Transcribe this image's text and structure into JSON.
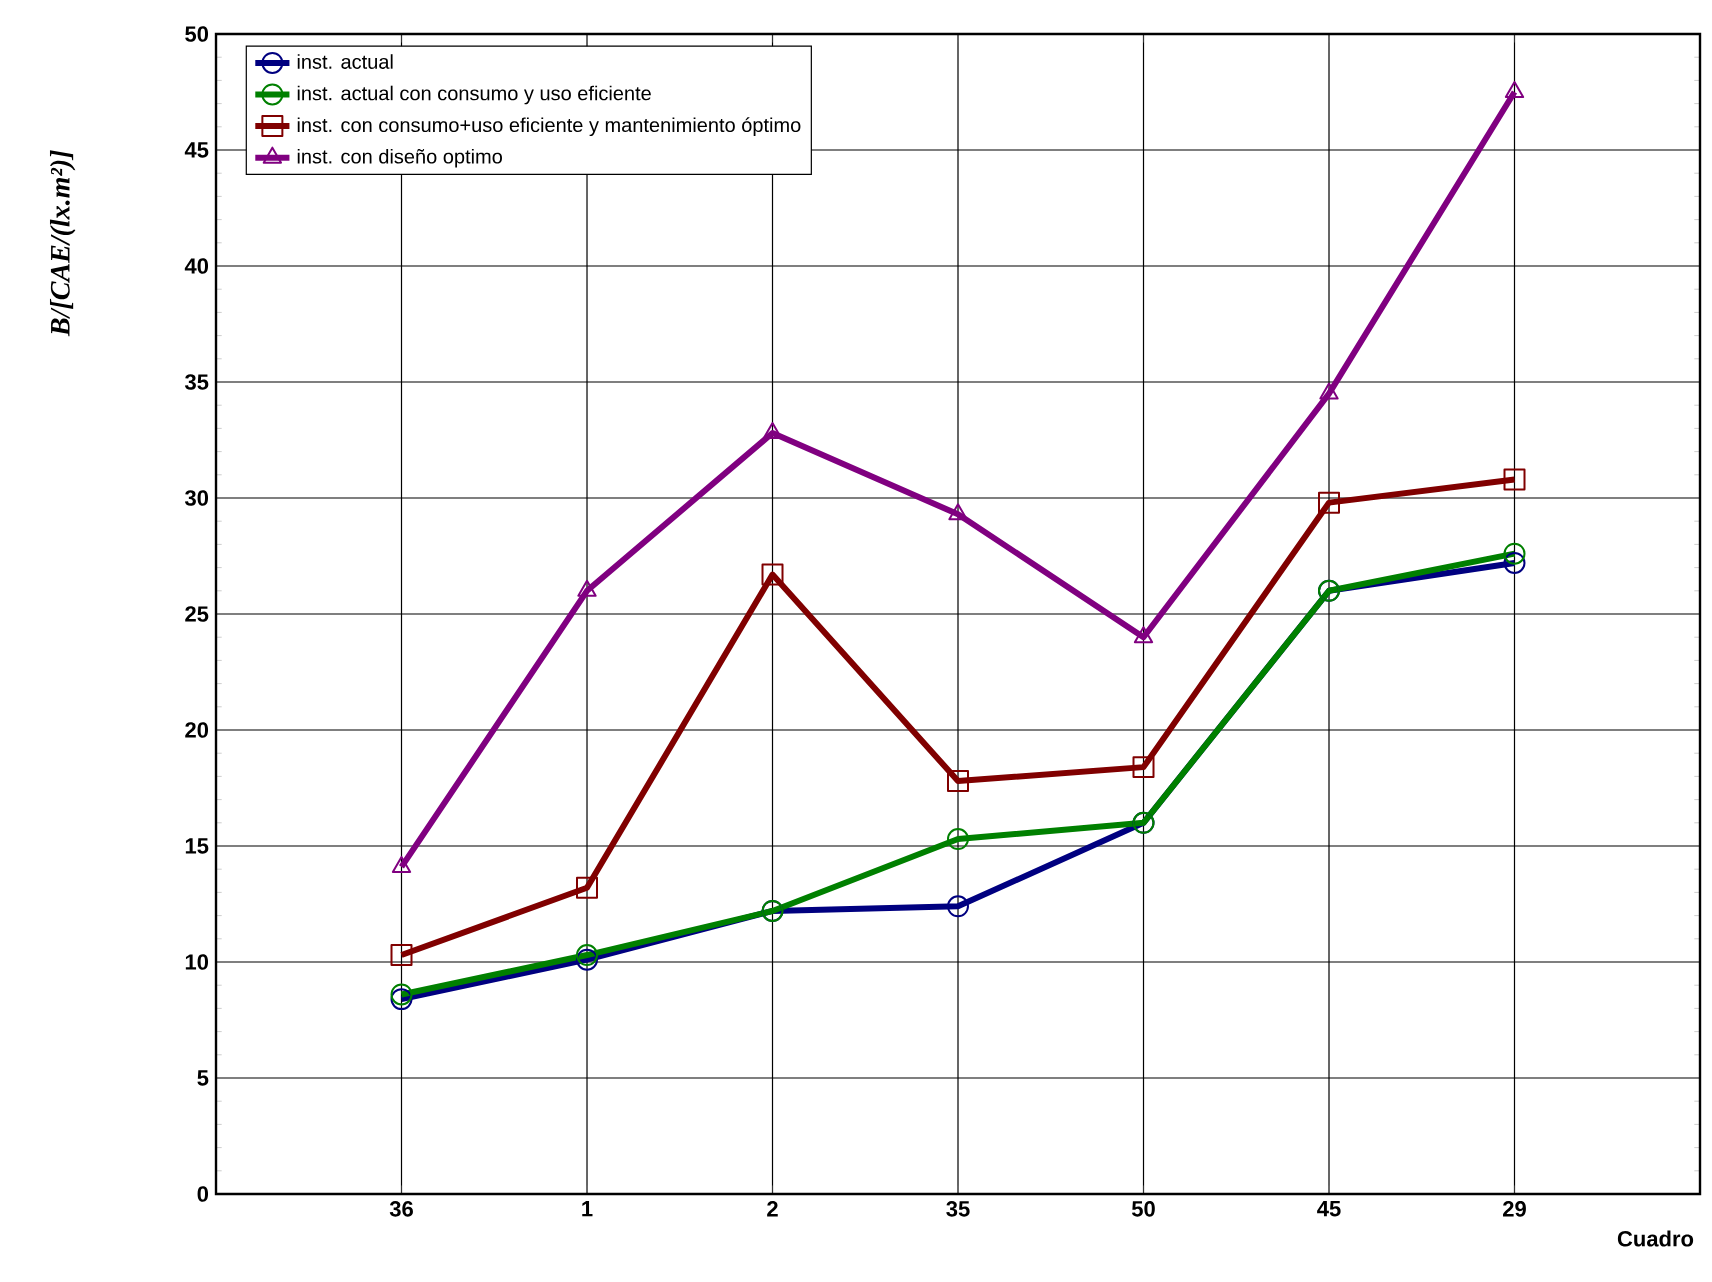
{
  "chart_data": {
    "type": "line",
    "xlabel": "Cuadro",
    "ylabel": "B/[CAE/(lx.m²)]",
    "categories": [
      "36",
      "1",
      "2",
      "35",
      "50",
      "45",
      "29"
    ],
    "series": [
      {
        "name": "inst. actual",
        "color": "#000080",
        "marker": "circle",
        "values": [
          8.4,
          10.1,
          12.2,
          12.4,
          16.0,
          26.0,
          27.2
        ]
      },
      {
        "name": "inst. actual con consumo y uso eficiente",
        "color": "#008000",
        "marker": "circle",
        "values": [
          8.6,
          10.3,
          12.2,
          15.3,
          16.0,
          26.0,
          27.6
        ]
      },
      {
        "name": "inst. con consumo+uso eficiente y mantenimiento óptimo",
        "color": "#800000",
        "marker": "square",
        "values": [
          10.3,
          13.2,
          26.7,
          17.8,
          18.4,
          29.8,
          30.8
        ]
      },
      {
        "name": "inst. con diseño optimo",
        "color": "#800080",
        "marker": "triangle",
        "values": [
          14.1,
          26.0,
          32.8,
          29.3,
          24.0,
          34.5,
          47.5
        ]
      }
    ],
    "ylim": [
      0,
      50
    ],
    "yticks": [
      0,
      5,
      10,
      15,
      20,
      25,
      30,
      35,
      40,
      45,
      50
    ],
    "grid": true,
    "legend": "top left"
  }
}
